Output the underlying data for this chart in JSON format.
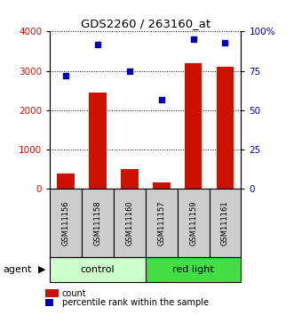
{
  "title": "GDS2260 / 263160_at",
  "samples": [
    "GSM111156",
    "GSM111158",
    "GSM111160",
    "GSM111157",
    "GSM111159",
    "GSM111161"
  ],
  "counts": [
    400,
    2450,
    500,
    170,
    3200,
    3100
  ],
  "percentiles": [
    72,
    92,
    75,
    57,
    95,
    93
  ],
  "groups": [
    {
      "label": "control",
      "start": 0,
      "end": 3,
      "color": "#ccffcc"
    },
    {
      "label": "red light",
      "start": 3,
      "end": 6,
      "color": "#44dd44"
    }
  ],
  "bar_color": "#cc1100",
  "dot_color": "#0000bb",
  "left_ylim": [
    0,
    4000
  ],
  "right_ylim": [
    0,
    100
  ],
  "left_yticks": [
    0,
    1000,
    2000,
    3000,
    4000
  ],
  "right_yticks": [
    0,
    25,
    50,
    75,
    100
  ],
  "right_yticklabels": [
    "0",
    "25",
    "50",
    "75",
    "100%"
  ],
  "left_ycolor": "#cc1100",
  "right_ycolor": "#0000bb",
  "grid_linestyle": ":",
  "legend_count_label": "count",
  "legend_pct_label": "percentile rank within the sample",
  "agent_label": "agent",
  "sample_box_color": "#cccccc",
  "bar_width": 0.55
}
